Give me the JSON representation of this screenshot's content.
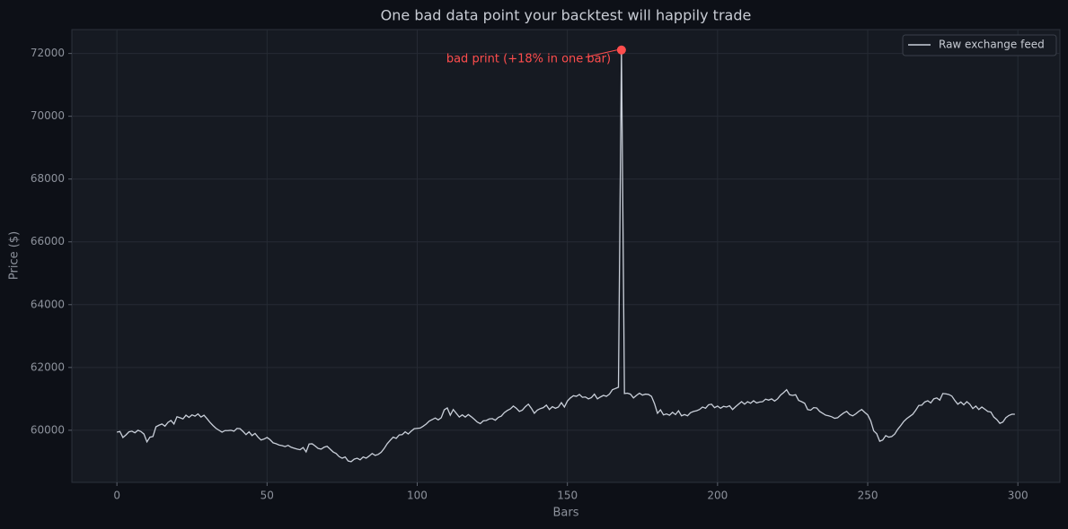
{
  "chart_data": {
    "type": "line",
    "title": "One bad data point your backtest will happily trade",
    "xlabel": "Bars",
    "ylabel": "Price ($)",
    "x": [
      0,
      1,
      2,
      3,
      4,
      5,
      6,
      7,
      8,
      9,
      10,
      11,
      12,
      13,
      14,
      15,
      16,
      17,
      18,
      19,
      20,
      21,
      22,
      23,
      24,
      25,
      26,
      27,
      28,
      29,
      30,
      31,
      32,
      33,
      34,
      35,
      36,
      37,
      38,
      39,
      40,
      41,
      42,
      43,
      44,
      45,
      46,
      47,
      48,
      49,
      50,
      51,
      52,
      53,
      54,
      55,
      56,
      57,
      58,
      59,
      60,
      61,
      62,
      63,
      64,
      65,
      66,
      67,
      68,
      69,
      70,
      71,
      72,
      73,
      74,
      75,
      76,
      77,
      78,
      79,
      80,
      81,
      82,
      83,
      84,
      85,
      86,
      87,
      88,
      89,
      90,
      91,
      92,
      93,
      94,
      95,
      96,
      97,
      98,
      99,
      100,
      101,
      102,
      103,
      104,
      105,
      106,
      107,
      108,
      109,
      110,
      111,
      112,
      113,
      114,
      115,
      116,
      117,
      118,
      119,
      120,
      121,
      122,
      123,
      124,
      125,
      126,
      127,
      128,
      129,
      130,
      131,
      132,
      133,
      134,
      135,
      136,
      137,
      138,
      139,
      140,
      141,
      142,
      143,
      144,
      145,
      146,
      147,
      148,
      149,
      150,
      151,
      152,
      153,
      154,
      155,
      156,
      157,
      158,
      159,
      160,
      161,
      162,
      163,
      164,
      165,
      166,
      167,
      168,
      169,
      170,
      171,
      172,
      173,
      174,
      175,
      176,
      177,
      178,
      179,
      180,
      181,
      182,
      183,
      184,
      185,
      186,
      187,
      188,
      189,
      190,
      191,
      192,
      193,
      194,
      195,
      196,
      197,
      198,
      199,
      200,
      201,
      202,
      203,
      204,
      205,
      206,
      207,
      208,
      209,
      210,
      211,
      212,
      213,
      214,
      215,
      216,
      217,
      218,
      219,
      220,
      221,
      222,
      223,
      224,
      225,
      226,
      227,
      228,
      229,
      230,
      231,
      232,
      233,
      234,
      235,
      236,
      237,
      238,
      239,
      240,
      241,
      242,
      243,
      244,
      245,
      246,
      247,
      248,
      249,
      250,
      251,
      252,
      253,
      254,
      255,
      256,
      257,
      258,
      259,
      260,
      261,
      262,
      263,
      264,
      265,
      266,
      267,
      268,
      269,
      270,
      271,
      272,
      273,
      274,
      275,
      276,
      277,
      278,
      279,
      280,
      281,
      282,
      283,
      284,
      285,
      286,
      287,
      288,
      289,
      290,
      291,
      292,
      293,
      294,
      295,
      296,
      297,
      298,
      299
    ],
    "series": [
      {
        "name": "Raw exchange feed",
        "color": "#c9cfd9",
        "values": [
          59940,
          59960,
          59770,
          59850,
          59950,
          59970,
          59920,
          60000,
          59960,
          59880,
          59630,
          59780,
          59800,
          60110,
          60160,
          60200,
          60130,
          60250,
          60310,
          60200,
          60430,
          60400,
          60360,
          60480,
          60410,
          60490,
          60450,
          60520,
          60420,
          60480,
          60370,
          60250,
          60150,
          60060,
          60000,
          59940,
          59990,
          59990,
          60000,
          59970,
          60060,
          60050,
          59960,
          59860,
          59950,
          59830,
          59900,
          59780,
          59690,
          59720,
          59770,
          59700,
          59600,
          59570,
          59530,
          59510,
          59480,
          59520,
          59460,
          59430,
          59400,
          59380,
          59450,
          59310,
          59560,
          59570,
          59500,
          59420,
          59400,
          59460,
          59490,
          59400,
          59310,
          59260,
          59160,
          59110,
          59150,
          59020,
          59000,
          59080,
          59110,
          59060,
          59150,
          59110,
          59180,
          59260,
          59200,
          59230,
          59300,
          59420,
          59570,
          59680,
          59780,
          59740,
          59850,
          59860,
          59950,
          59880,
          59970,
          60050,
          60060,
          60070,
          60130,
          60200,
          60290,
          60340,
          60390,
          60330,
          60400,
          60650,
          60710,
          60480,
          60660,
          60540,
          60420,
          60490,
          60420,
          60500,
          60430,
          60350,
          60260,
          60210,
          60300,
          60310,
          60360,
          60370,
          60320,
          60410,
          60450,
          60560,
          60630,
          60680,
          60770,
          60700,
          60600,
          60640,
          60750,
          60830,
          60700,
          60540,
          60640,
          60690,
          60720,
          60800,
          60660,
          60750,
          60700,
          60740,
          60880,
          60740,
          60930,
          61030,
          61100,
          61080,
          61140,
          61050,
          61060,
          61000,
          61040,
          61150,
          61000,
          61060,
          61110,
          61080,
          61150,
          61290,
          61330,
          61370,
          72110,
          61170,
          61180,
          61150,
          61030,
          61110,
          61180,
          61120,
          61150,
          61140,
          61080,
          60850,
          60540,
          60650,
          60490,
          60520,
          60480,
          60570,
          60500,
          60620,
          60460,
          60500,
          60460,
          60560,
          60600,
          60620,
          60660,
          60740,
          60700,
          60810,
          60830,
          60720,
          60770,
          60700,
          60760,
          60740,
          60780,
          60660,
          60750,
          60830,
          60910,
          60830,
          60910,
          60860,
          60940,
          60870,
          60900,
          60910,
          60990,
          60960,
          61000,
          60930,
          61000,
          61120,
          61200,
          61290,
          61130,
          61110,
          61130,
          60950,
          60910,
          60860,
          60660,
          60640,
          60720,
          60710,
          60600,
          60540,
          60480,
          60460,
          60430,
          60380,
          60400,
          60480,
          60550,
          60600,
          60500,
          60460,
          60520,
          60600,
          60660,
          60570,
          60490,
          60300,
          59980,
          59890,
          59650,
          59690,
          59830,
          59780,
          59800,
          59880,
          60030,
          60150,
          60280,
          60370,
          60440,
          60510,
          60640,
          60790,
          60800,
          60900,
          60940,
          60870,
          61000,
          61030,
          60960,
          61170,
          61160,
          61140,
          61090,
          60950,
          60830,
          60900,
          60810,
          60910,
          60830,
          60690,
          60770,
          60660,
          60740,
          60670,
          60600,
          60580,
          60420,
          60340,
          60220,
          60260,
          60400,
          60470,
          60510,
          60510
        ]
      }
    ],
    "annotations": [
      {
        "text": "bad print (+18% in one bar)",
        "x": 168,
        "y": 72110,
        "color": "#ff4d4d"
      }
    ],
    "xlim": [
      -15,
      314
    ],
    "xticks": [
      0,
      50,
      100,
      150,
      200,
      250,
      300
    ],
    "ylim": [
      58340,
      72760
    ],
    "yticks": [
      60000,
      62000,
      64000,
      66000,
      68000,
      70000,
      72000
    ],
    "grid": true,
    "legend": "upper right"
  }
}
